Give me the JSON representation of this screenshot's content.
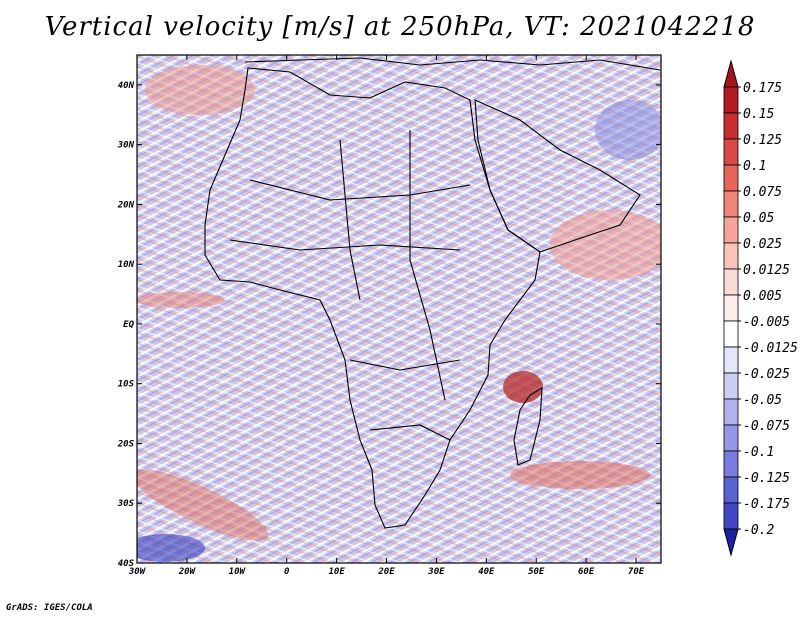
{
  "title": "Vertical velocity [m/s] at 250hPa, VT: 2021042218",
  "credit": "GrADS: IGES/COLA",
  "map": {
    "lon_range": [
      -30,
      75
    ],
    "lat_range": [
      -40,
      45
    ],
    "x_ticks": [
      {
        "lon": -30,
        "label": "30W"
      },
      {
        "lon": -20,
        "label": "20W"
      },
      {
        "lon": -10,
        "label": "10W"
      },
      {
        "lon": 0,
        "label": "0"
      },
      {
        "lon": 10,
        "label": "10E"
      },
      {
        "lon": 20,
        "label": "20E"
      },
      {
        "lon": 30,
        "label": "30E"
      },
      {
        "lon": 40,
        "label": "40E"
      },
      {
        "lon": 50,
        "label": "50E"
      },
      {
        "lon": 60,
        "label": "60E"
      },
      {
        "lon": 70,
        "label": "70E"
      }
    ],
    "y_ticks": [
      {
        "lat": 40,
        "label": "40N"
      },
      {
        "lat": 30,
        "label": "30N"
      },
      {
        "lat": 20,
        "label": "20N"
      },
      {
        "lat": 10,
        "label": "10N"
      },
      {
        "lat": 0,
        "label": "EQ"
      },
      {
        "lat": -10,
        "label": "10S"
      },
      {
        "lat": -20,
        "label": "20S"
      },
      {
        "lat": -30,
        "label": "30S"
      },
      {
        "lat": -40,
        "label": "40S"
      }
    ]
  },
  "colorbar": {
    "levels": [
      {
        "label": "0.175",
        "color": "#b01c22"
      },
      {
        "label": "0.15",
        "color": "#c8302f"
      },
      {
        "label": "0.125",
        "color": "#da4a44"
      },
      {
        "label": "0.1",
        "color": "#e6655a"
      },
      {
        "label": "0.075",
        "color": "#ee8578"
      },
      {
        "label": "0.05",
        "color": "#f4a699"
      },
      {
        "label": "0.025",
        "color": "#f8c4ba"
      },
      {
        "label": "0.0125",
        "color": "#fbdcd5"
      },
      {
        "label": "0.005",
        "color": "#fdeeea"
      },
      {
        "label": "-0.005",
        "color": "#ffffff"
      },
      {
        "label": "-0.0125",
        "color": "#e4e6fa"
      },
      {
        "label": "-0.025",
        "color": "#cacdf5"
      },
      {
        "label": "-0.05",
        "color": "#afb2ee"
      },
      {
        "label": "-0.075",
        "color": "#9397e6"
      },
      {
        "label": "-0.1",
        "color": "#777cdd"
      },
      {
        "label": "-0.125",
        "color": "#5c61d2"
      },
      {
        "label": "-0.175",
        "color": "#4247c4"
      },
      {
        "label": "-0.2",
        "color": "#2a2fb3"
      }
    ],
    "top_color": "#a3161c",
    "bottom_color": "#1d20a6"
  }
}
